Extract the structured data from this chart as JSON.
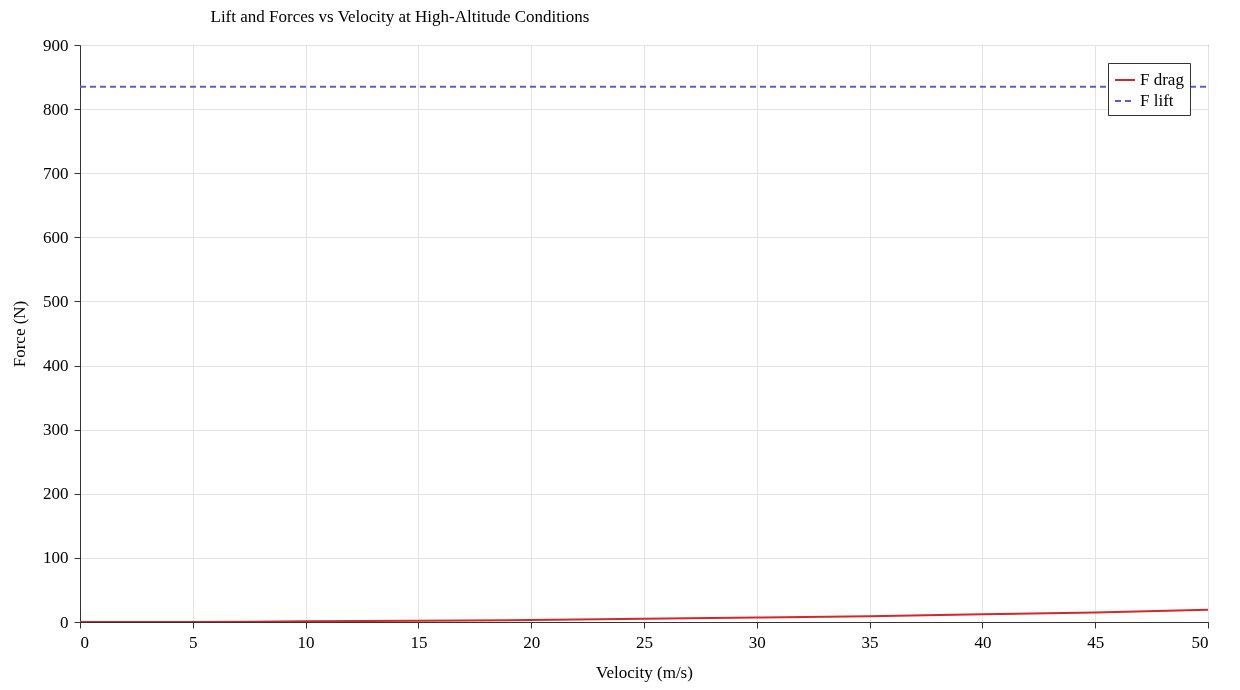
{
  "chart_data": {
    "type": "line",
    "title": "Lift and Forces vs Velocity at High-Altitude Conditions",
    "xlabel": "Velocity (m/s)",
    "ylabel": "Force (N)",
    "x": [
      0,
      5,
      10,
      15,
      20,
      25,
      30,
      35,
      40,
      45,
      50
    ],
    "series": [
      {
        "name": "F drag",
        "color": "#d62728",
        "line_style": "solid",
        "values": [
          0,
          0,
          1,
          2,
          3,
          5,
          7,
          9,
          12,
          15,
          19
        ]
      },
      {
        "name": "F lift",
        "color": "#5b5bd6",
        "line_style": "dashed",
        "values": [
          835,
          835,
          835,
          835,
          835,
          835,
          835,
          835,
          835,
          835,
          835
        ]
      }
    ],
    "xlim": [
      0,
      50
    ],
    "xticks": [
      0,
      5,
      10,
      15,
      20,
      25,
      30,
      35,
      40,
      45,
      50
    ],
    "ylim": [
      0,
      900
    ],
    "yticks": [
      0,
      100,
      200,
      300,
      400,
      500,
      600,
      700,
      800,
      900
    ],
    "grid": true,
    "legend": "top right"
  }
}
